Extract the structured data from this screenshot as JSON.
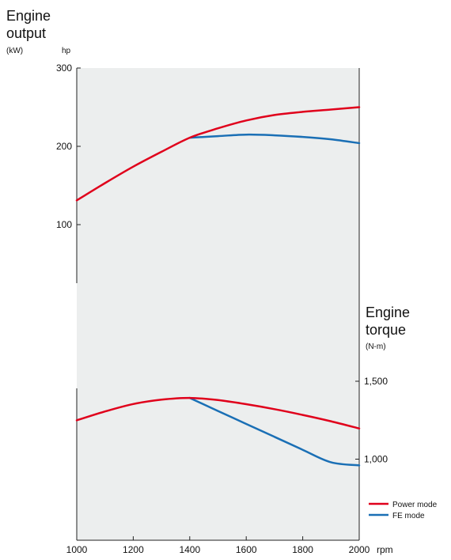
{
  "chart_data": {
    "type": "line",
    "output": {
      "title_line1": "Engine",
      "title_line2": "output",
      "unit_left": "(kW)",
      "unit_right": "hp",
      "ylim": [
        0,
        300
      ],
      "yticks": [
        100,
        200,
        300
      ],
      "series": [
        {
          "name": "Power mode",
          "color": "#e0001b",
          "points": [
            [
              1000,
              131
            ],
            [
              1100,
              153
            ],
            [
              1200,
              174
            ],
            [
              1300,
              193
            ],
            [
              1400,
              211
            ],
            [
              1500,
              223
            ],
            [
              1600,
              233
            ],
            [
              1700,
              240
            ],
            [
              1800,
              244
            ],
            [
              1900,
              247
            ],
            [
              2000,
              250
            ]
          ]
        },
        {
          "name": "FE mode",
          "color": "#1a6fb5",
          "points": [
            [
              1400,
              211
            ],
            [
              1500,
              213
            ],
            [
              1600,
              215
            ],
            [
              1700,
              214
            ],
            [
              1800,
              212
            ],
            [
              1900,
              209
            ],
            [
              2000,
              204
            ]
          ]
        }
      ]
    },
    "torque": {
      "title_line1": "Engine",
      "title_line2": "torque",
      "unit": "(N-m)",
      "ylim": [
        500,
        1500
      ],
      "ytick_values": [
        1000,
        1500
      ],
      "ytick_labels": [
        "1,000",
        "1,500"
      ],
      "series": [
        {
          "name": "Power mode",
          "color": "#e0001b",
          "points": [
            [
              1000,
              1249
            ],
            [
              1100,
              1306
            ],
            [
              1200,
              1354
            ],
            [
              1300,
              1382
            ],
            [
              1400,
              1393
            ],
            [
              1500,
              1379
            ],
            [
              1600,
              1353
            ],
            [
              1700,
              1321
            ],
            [
              1800,
              1284
            ],
            [
              1900,
              1243
            ],
            [
              2000,
              1197
            ]
          ]
        },
        {
          "name": "FE mode",
          "color": "#1a6fb5",
          "points": [
            [
              1400,
              1393
            ],
            [
              1500,
              1309
            ],
            [
              1600,
              1226
            ],
            [
              1700,
              1143
            ],
            [
              1800,
              1060
            ],
            [
              1900,
              980
            ],
            [
              2000,
              960
            ]
          ]
        }
      ]
    },
    "x_ticks": [
      1000,
      1200,
      1400,
      1600,
      1800,
      2000
    ],
    "x_unit": "rpm",
    "legend": [
      {
        "label": "Power mode",
        "color": "#e0001b"
      },
      {
        "label": "FE mode",
        "color": "#1a6fb5"
      }
    ],
    "legend_position": "bottom-right",
    "background_color": "#eceeee"
  }
}
